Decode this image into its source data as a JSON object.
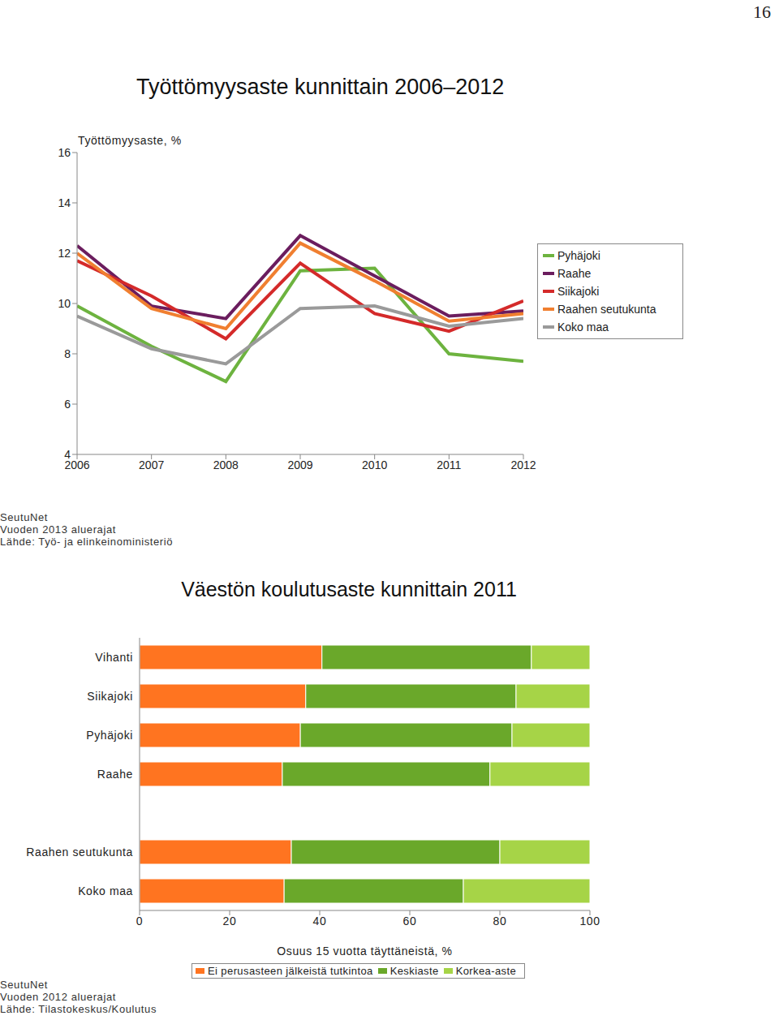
{
  "page": "16",
  "chart_data": [
    {
      "type": "line",
      "title": "Työttömyysaste kunnittain 2006–2012",
      "y_label": "Työttömyysaste, %",
      "x": [
        2006,
        2007,
        2008,
        2009,
        2010,
        2011,
        2012
      ],
      "xlim": [
        2006,
        2012
      ],
      "xticks": [
        2006,
        2007,
        2008,
        2009,
        2010,
        2011,
        2012
      ],
      "ylim": [
        4,
        16
      ],
      "yticks": [
        4,
        6,
        8,
        10,
        12,
        14,
        16
      ],
      "grid": false,
      "legend": "right",
      "series": [
        {
          "name": "Pyhäjoki",
          "color": "#6db33f",
          "values": [
            9.9,
            8.3,
            6.9,
            11.3,
            11.4,
            8.0,
            7.7
          ]
        },
        {
          "name": "Raahe",
          "color": "#6b1d5e",
          "values": [
            12.3,
            9.9,
            9.4,
            12.7,
            11.1,
            9.5,
            9.7
          ]
        },
        {
          "name": "Siikajoki",
          "color": "#d42a2a",
          "values": [
            11.7,
            10.3,
            8.6,
            11.6,
            9.6,
            8.9,
            10.1
          ]
        },
        {
          "name": "Raahen seutukunta",
          "color": "#f07f30",
          "values": [
            12.0,
            9.8,
            9.0,
            12.4,
            10.9,
            9.3,
            9.6
          ]
        },
        {
          "name": "Koko maa",
          "color": "#9a9a9a",
          "values": [
            9.5,
            8.2,
            7.6,
            9.8,
            9.9,
            9.1,
            9.4
          ]
        }
      ],
      "annotations": [
        "SeutuNet",
        "Vuoden 2013 aluerajat",
        "Lähde: Työ- ja elinkeinoministeriö"
      ]
    },
    {
      "type": "bar",
      "orientation": "horizontal",
      "stacked": true,
      "title": "Väestön koulutusaste kunnittain 2011",
      "x_label": "Osuus 15 vuotta täyttäneistä, %",
      "categories": [
        "Vihanti",
        "Siikajoki",
        "Pyhäjoki",
        "Raahe",
        null,
        "Raahen seutukunta",
        "Koko maa"
      ],
      "xlim": [
        0,
        100
      ],
      "xticks": [
        0,
        20,
        40,
        60,
        80,
        100
      ],
      "grid": false,
      "legend": "bottom",
      "series": [
        {
          "name": "Ei perusasteen jälkeistä tutkintoa",
          "color": "#ff7420",
          "values": [
            40.5,
            36.9,
            35.7,
            31.7,
            null,
            33.7,
            32.1
          ]
        },
        {
          "name": "Keskiaste",
          "color": "#6aa82a",
          "values": [
            46.5,
            46.7,
            47.0,
            46.1,
            null,
            46.3,
            39.8
          ]
        },
        {
          "name": "Korkea-aste",
          "color": "#a6d447",
          "values": [
            13.0,
            16.4,
            17.3,
            22.2,
            null,
            20.0,
            28.1
          ]
        }
      ],
      "annotations": [
        "SeutuNet",
        "Vuoden 2012 aluerajat",
        "Lähde: Tilastokeskus/Koulutus"
      ]
    }
  ]
}
